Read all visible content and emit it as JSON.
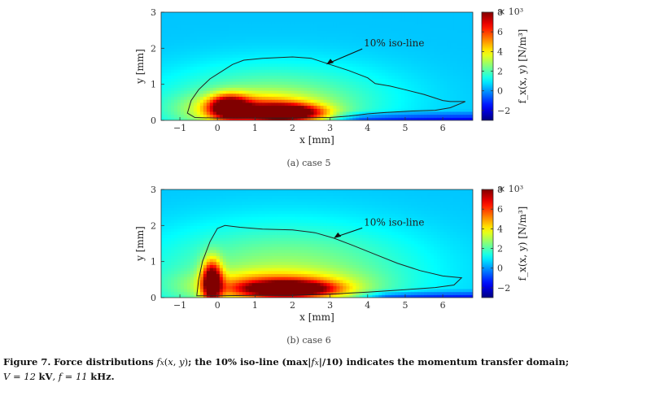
{
  "chart_data": [
    {
      "type": "heatmap",
      "subcaption": "(a) case 5",
      "xlabel": "x [mm]",
      "ylabel": "y [mm]",
      "xlim": [
        -1.5,
        6.8
      ],
      "ylim": [
        0,
        3
      ],
      "x_ticks": [
        "−1",
        "0",
        "1",
        "2",
        "3",
        "4",
        "5",
        "6"
      ],
      "x_tick_values": [
        -1,
        0,
        1,
        2,
        3,
        4,
        5,
        6
      ],
      "y_ticks": [
        "0",
        "1",
        "2",
        "3"
      ],
      "y_tick_values": [
        0,
        1,
        2,
        3
      ],
      "colorbar_label": "f_x(x, y) [N/m³]",
      "colorbar_exponent": "× 10³",
      "colorbar_ticks": [
        "−2",
        "0",
        "2",
        "4",
        "6",
        "8"
      ],
      "colorbar_tick_values": [
        -2,
        0,
        2,
        4,
        6,
        8
      ],
      "clim": [
        -3,
        8
      ],
      "annotation": "10% iso-line",
      "annotation_point": [
        2.9,
        1.55
      ],
      "annotation_text_pos": [
        3.9,
        2.05
      ],
      "iso_line": [
        [
          -0.8,
          0.2
        ],
        [
          -0.7,
          0.55
        ],
        [
          -0.5,
          0.85
        ],
        [
          -0.2,
          1.15
        ],
        [
          0.1,
          1.35
        ],
        [
          0.4,
          1.55
        ],
        [
          0.7,
          1.67
        ],
        [
          1.2,
          1.72
        ],
        [
          2.0,
          1.76
        ],
        [
          2.5,
          1.72
        ],
        [
          3.0,
          1.55
        ],
        [
          3.5,
          1.38
        ],
        [
          4.0,
          1.18
        ],
        [
          4.2,
          1.02
        ],
        [
          4.6,
          0.95
        ],
        [
          5.0,
          0.85
        ],
        [
          5.5,
          0.72
        ],
        [
          6.0,
          0.55
        ],
        [
          6.2,
          0.52
        ],
        [
          6.6,
          0.52
        ],
        [
          6.2,
          0.35
        ],
        [
          5.8,
          0.28
        ],
        [
          5.2,
          0.26
        ],
        [
          4.5,
          0.22
        ],
        [
          4.0,
          0.18
        ],
        [
          3.5,
          0.12
        ],
        [
          3.0,
          0.08
        ],
        [
          2.0,
          0.06
        ],
        [
          1.0,
          0.06
        ],
        [
          0.0,
          0.06
        ],
        [
          -0.6,
          0.08
        ],
        [
          -0.8,
          0.2
        ]
      ],
      "force_blobs": [
        {
          "x": 1.8,
          "y": 0.22,
          "sx": 0.65,
          "sy": 0.15,
          "amp": 7.5
        },
        {
          "x": 0.3,
          "y": 0.38,
          "sx": 0.35,
          "sy": 0.22,
          "amp": 6.5
        },
        {
          "x": 1.0,
          "y": 0.28,
          "sx": 1.2,
          "sy": 0.3,
          "amp": 4.0
        },
        {
          "x": 1.5,
          "y": 0.6,
          "sx": 2.2,
          "sy": 0.7,
          "amp": 2.0
        }
      ],
      "negative_region": {
        "x_start": 2.8,
        "x_end": 6.8,
        "y_top": 0.3,
        "amp": -2.5
      }
    },
    {
      "type": "heatmap",
      "subcaption": "(b) case 6",
      "xlabel": "x [mm]",
      "ylabel": "y [mm]",
      "xlim": [
        -1.5,
        6.8
      ],
      "ylim": [
        0,
        3
      ],
      "x_ticks": [
        "−1",
        "0",
        "1",
        "2",
        "3",
        "4",
        "5",
        "6"
      ],
      "x_tick_values": [
        -1,
        0,
        1,
        2,
        3,
        4,
        5,
        6
      ],
      "y_ticks": [
        "0",
        "1",
        "2",
        "3"
      ],
      "y_tick_values": [
        0,
        1,
        2,
        3
      ],
      "colorbar_label": "f_x(x, y) [N/m³]",
      "colorbar_exponent": "× 10³",
      "colorbar_ticks": [
        "−2",
        "0",
        "2",
        "4",
        "6",
        "8"
      ],
      "colorbar_tick_values": [
        -2,
        0,
        2,
        4,
        6,
        8
      ],
      "clim": [
        -3,
        8
      ],
      "annotation": "10% iso-line",
      "annotation_point": [
        3.1,
        1.65
      ],
      "annotation_text_pos": [
        3.9,
        2.0
      ],
      "iso_line": [
        [
          -0.55,
          0.05
        ],
        [
          -0.5,
          0.5
        ],
        [
          -0.4,
          1.0
        ],
        [
          -0.2,
          1.55
        ],
        [
          0.0,
          1.92
        ],
        [
          0.2,
          2.0
        ],
        [
          0.6,
          1.95
        ],
        [
          1.2,
          1.9
        ],
        [
          2.0,
          1.88
        ],
        [
          2.6,
          1.8
        ],
        [
          3.1,
          1.65
        ],
        [
          3.6,
          1.45
        ],
        [
          4.2,
          1.2
        ],
        [
          4.8,
          0.95
        ],
        [
          5.4,
          0.75
        ],
        [
          6.0,
          0.6
        ],
        [
          6.5,
          0.55
        ],
        [
          6.3,
          0.35
        ],
        [
          5.8,
          0.28
        ],
        [
          5.0,
          0.22
        ],
        [
          4.0,
          0.15
        ],
        [
          3.0,
          0.1
        ],
        [
          2.0,
          0.06
        ],
        [
          1.0,
          0.06
        ],
        [
          0.0,
          0.05
        ],
        [
          -0.55,
          0.05
        ]
      ],
      "force_blobs": [
        {
          "x": -0.15,
          "y": 0.45,
          "sx": 0.18,
          "sy": 0.4,
          "amp": 7.5
        },
        {
          "x": 1.9,
          "y": 0.25,
          "sx": 0.8,
          "sy": 0.15,
          "amp": 7.0
        },
        {
          "x": 1.5,
          "y": 0.3,
          "sx": 1.5,
          "sy": 0.3,
          "amp": 3.5
        },
        {
          "x": 1.8,
          "y": 0.8,
          "sx": 2.5,
          "sy": 0.9,
          "amp": 2.2
        }
      ],
      "negative_region": {
        "x_start": 3.5,
        "x_end": 6.8,
        "y_top": 0.25,
        "amp": -2.5
      }
    }
  ],
  "caption": {
    "lead": "Figure 7.",
    "text1": "Force distributions",
    "math1": "f",
    "text2": "; the",
    "bold2": "10% iso-line",
    "text3": "(max|",
    "text4": "|/10) indicates the momentum transfer domain;",
    "line2_v": "V = 12",
    "line2_kv": "kV",
    "line2_f": ", f = 11",
    "line2_khz": "kHz."
  }
}
